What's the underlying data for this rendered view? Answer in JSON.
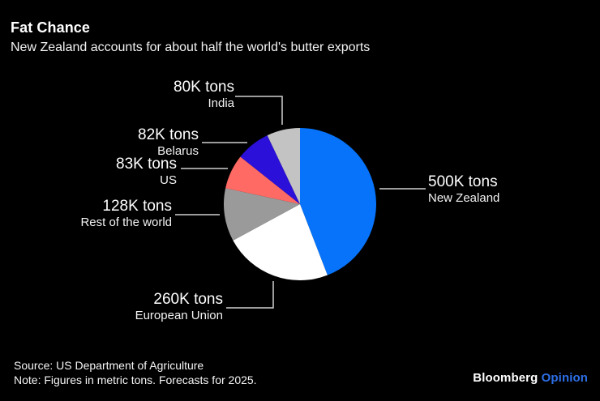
{
  "header": {
    "title": "Fat Chance",
    "subtitle": "New Zealand accounts for about half the world's butter exports"
  },
  "chart_data": {
    "type": "pie",
    "title": "Fat Chance",
    "subtitle": "New Zealand accounts for about half the world's butter exports",
    "unit": "thousand metric tons",
    "direction": "clockwise",
    "start_angle": "12 o'clock",
    "slices": [
      {
        "name": "New Zealand",
        "value": 500,
        "value_label": "500K tons",
        "color": "#0673fa"
      },
      {
        "name": "European Union",
        "value": 260,
        "value_label": "260K tons",
        "color": "#ffffff"
      },
      {
        "name": "Rest of the world",
        "value": 128,
        "value_label": "128K tons",
        "color": "#9a9a9a"
      },
      {
        "name": "US",
        "value": 83,
        "value_label": "83K tons",
        "color": "#ff6a64"
      },
      {
        "name": "Belarus",
        "value": 82,
        "value_label": "82K tons",
        "color": "#2a10d8"
      },
      {
        "name": "India",
        "value": 80,
        "value_label": "80K tons",
        "color": "#c3c3c3"
      }
    ]
  },
  "footer": {
    "source": "Source: US Department of Agriculture",
    "note": "Note: Figures in metric tons. Forecasts for 2025.",
    "brand": "Bloomberg",
    "brand_suffix": "Opinion"
  },
  "colors": {
    "background": "#000000",
    "text": "#ffffff",
    "leader_line": "#cfcfcf",
    "brand_accent": "#2d6fe8"
  }
}
